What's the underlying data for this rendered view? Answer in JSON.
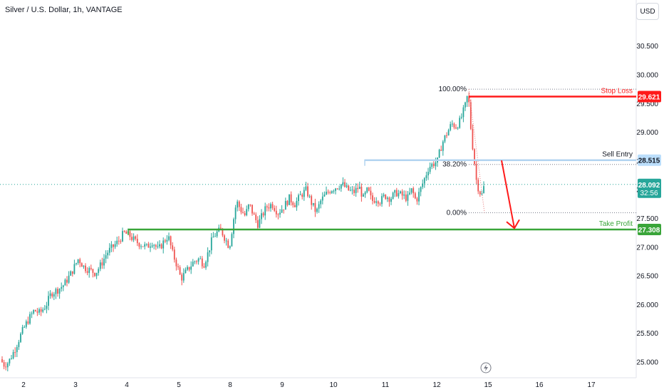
{
  "header": {
    "symbol_title": "Silver / U.S. Dollar, 1h, VANTAGE",
    "currency_button": "USD"
  },
  "chart_data": {
    "type": "candlestick",
    "symbol": "Silver / U.S. Dollar",
    "interval": "1h",
    "source": "VANTAGE",
    "x_ticks": [
      "2",
      "3",
      "4",
      "5",
      "8",
      "9",
      "10",
      "11",
      "12",
      "15",
      "16",
      "17"
    ],
    "y_ticks": [
      "25.000",
      "25.500",
      "26.000",
      "26.500",
      "27.000",
      "27.500",
      "28.000",
      "28.500",
      "29.000",
      "29.500",
      "30.000",
      "30.500"
    ],
    "ylim": [
      24.9,
      31.2
    ],
    "current_price": {
      "value": "28.092",
      "countdown": "32:56"
    },
    "levels": [
      {
        "label": "Stop Loss",
        "value": "29.621",
        "color": "#ff1a1a"
      },
      {
        "label": "Sell Entry",
        "value": "28.515",
        "color": "#b3d4f0"
      },
      {
        "label": "Take Profit",
        "value": "27.308",
        "color": "#3aa53a"
      }
    ],
    "fibonacci": [
      {
        "label": "100.00%",
        "value": 29.75
      },
      {
        "label": "38.20%",
        "value": 28.44
      },
      {
        "label": "0.00%",
        "value": 27.6
      }
    ],
    "path": [
      [
        0,
        25.05
      ],
      [
        6,
        24.95
      ],
      [
        12,
        25.0
      ],
      [
        20,
        25.2
      ],
      [
        30,
        25.5
      ],
      [
        38,
        25.7
      ],
      [
        48,
        25.9
      ],
      [
        56,
        25.85
      ],
      [
        65,
        26.0
      ],
      [
        72,
        26.2
      ],
      [
        80,
        26.25
      ],
      [
        90,
        26.35
      ],
      [
        100,
        26.55
      ],
      [
        110,
        26.8
      ],
      [
        118,
        26.65
      ],
      [
        126,
        26.6
      ],
      [
        134,
        26.55
      ],
      [
        142,
        26.7
      ],
      [
        150,
        26.9
      ],
      [
        158,
        27.0
      ],
      [
        166,
        27.1
      ],
      [
        174,
        27.25
      ],
      [
        182,
        27.2
      ],
      [
        190,
        27.1
      ],
      [
        198,
        27.05
      ],
      [
        206,
        27.0
      ],
      [
        214,
        27.1
      ],
      [
        222,
        26.95
      ],
      [
        230,
        27.1
      ],
      [
        236,
        27.2
      ],
      [
        242,
        26.9
      ],
      [
        248,
        26.7
      ],
      [
        254,
        26.45
      ],
      [
        260,
        26.55
      ],
      [
        266,
        26.65
      ],
      [
        272,
        26.75
      ],
      [
        280,
        26.8
      ],
      [
        286,
        26.7
      ],
      [
        292,
        26.9
      ],
      [
        298,
        27.15
      ],
      [
        304,
        27.25
      ],
      [
        310,
        27.3
      ],
      [
        316,
        27.15
      ],
      [
        322,
        27.0
      ],
      [
        328,
        27.5
      ],
      [
        332,
        27.8
      ],
      [
        338,
        27.65
      ],
      [
        344,
        27.55
      ],
      [
        350,
        27.75
      ],
      [
        356,
        27.55
      ],
      [
        362,
        27.4
      ],
      [
        368,
        27.55
      ],
      [
        374,
        27.7
      ],
      [
        382,
        27.75
      ],
      [
        390,
        27.6
      ],
      [
        398,
        27.7
      ],
      [
        406,
        27.85
      ],
      [
        414,
        27.75
      ],
      [
        422,
        27.9
      ],
      [
        430,
        28.0
      ],
      [
        436,
        27.8
      ],
      [
        444,
        27.6
      ],
      [
        450,
        27.8
      ],
      [
        456,
        27.9
      ],
      [
        464,
        28.0
      ],
      [
        472,
        28.05
      ],
      [
        480,
        28.1
      ],
      [
        488,
        28.0
      ],
      [
        496,
        27.95
      ],
      [
        504,
        28.05
      ],
      [
        510,
        27.85
      ],
      [
        516,
        28.0
      ],
      [
        522,
        27.8
      ],
      [
        528,
        27.85
      ],
      [
        534,
        27.8
      ],
      [
        540,
        27.9
      ],
      [
        548,
        27.85
      ],
      [
        556,
        27.95
      ],
      [
        564,
        27.9
      ],
      [
        572,
        27.85
      ],
      [
        578,
        28.0
      ],
      [
        584,
        27.8
      ],
      [
        590,
        28.0
      ],
      [
        596,
        28.2
      ],
      [
        602,
        28.4
      ],
      [
        608,
        28.45
      ],
      [
        614,
        28.5
      ],
      [
        618,
        28.7
      ],
      [
        622,
        28.85
      ],
      [
        628,
        29.0
      ],
      [
        634,
        29.15
      ],
      [
        640,
        29.1
      ],
      [
        646,
        29.2
      ],
      [
        650,
        29.35
      ],
      [
        654,
        29.5
      ],
      [
        657,
        29.7
      ],
      [
        660,
        29.2
      ],
      [
        662,
        28.9
      ],
      [
        665,
        28.6
      ],
      [
        668,
        28.2
      ],
      [
        672,
        28.0
      ],
      [
        676,
        27.9
      ],
      [
        680,
        28.09
      ]
    ],
    "title": "Silver / U.S. Dollar, 1h, VANTAGE",
    "xlabel": "",
    "ylabel": "",
    "grid": false,
    "legend": false
  }
}
